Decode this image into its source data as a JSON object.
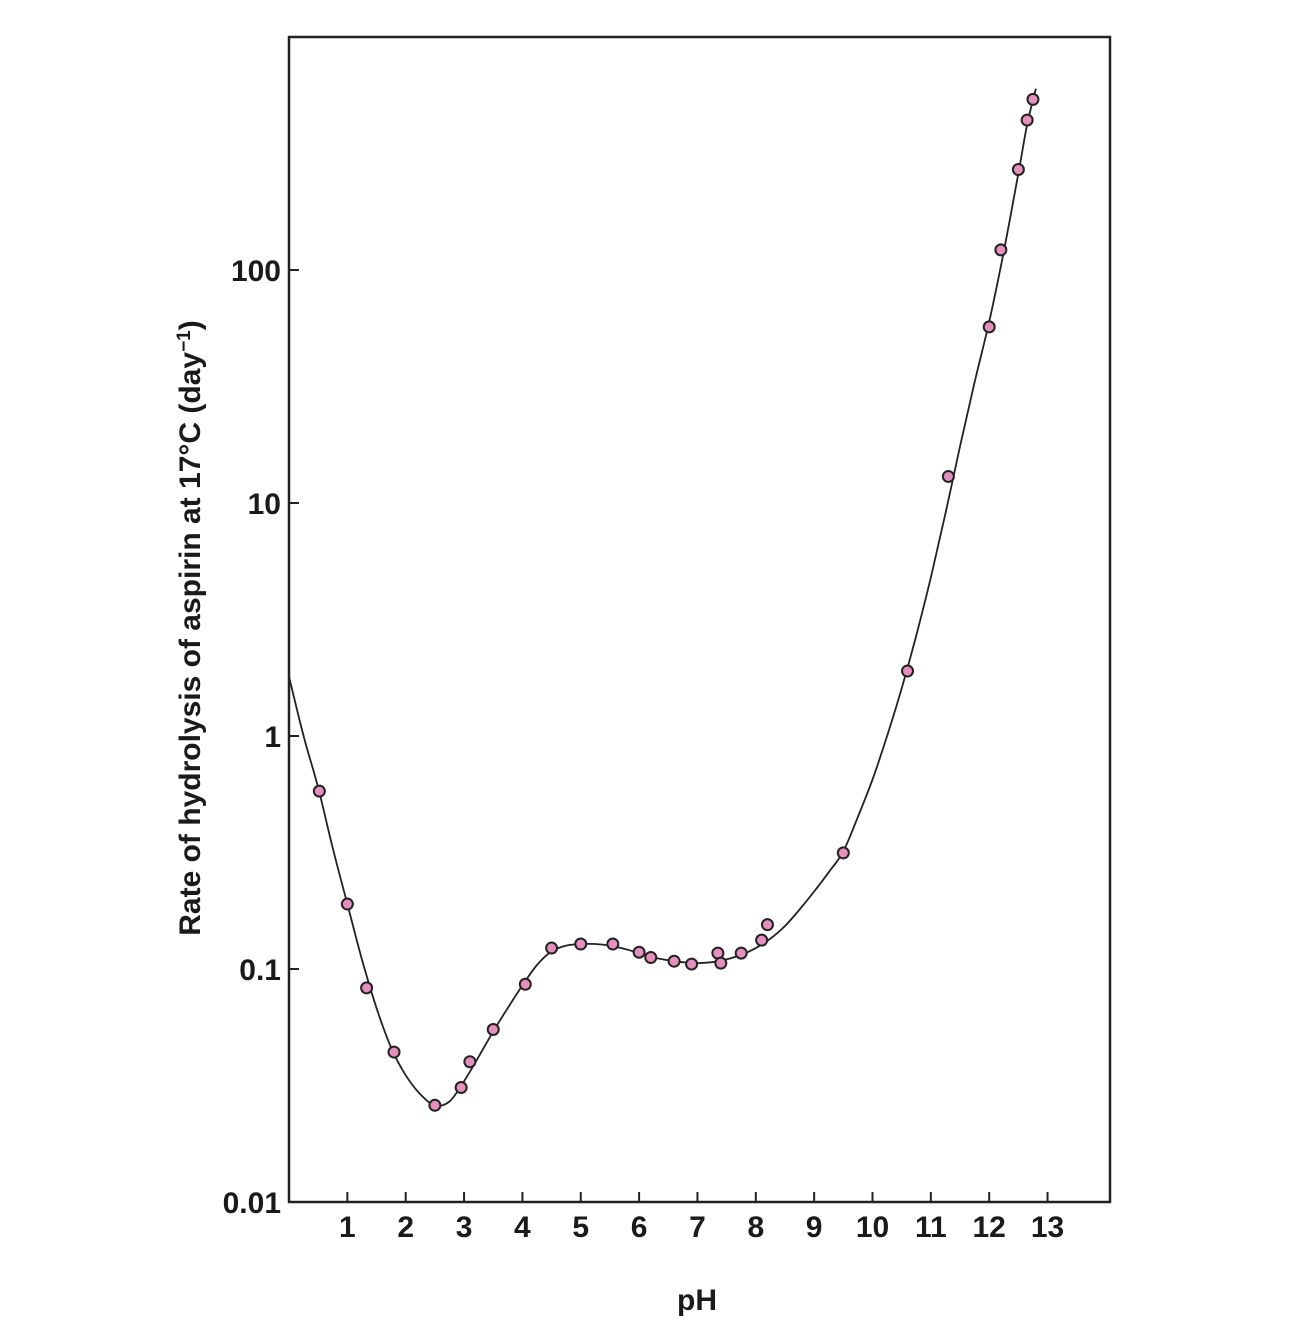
{
  "chart_data": {
    "type": "scatter",
    "title": "",
    "xlabel": "pH",
    "ylabel": "Rate of hydrolysis of aspirin at 17°C (day⁻¹)",
    "ylabel_main": "Rate of hydrolysis of aspirin at 17°C (day",
    "ylabel_sup": "−1",
    "ylabel_close": ")",
    "y_scale": "log",
    "xlim": [
      0,
      13.9
    ],
    "ylim": [
      0.01,
      1000
    ],
    "x_ticks": [
      1,
      2,
      3,
      4,
      5,
      6,
      7,
      8,
      9,
      10,
      11,
      12,
      13
    ],
    "x_tick_labels": [
      "1",
      "2",
      "3",
      "4",
      "5",
      "6",
      "7",
      "8",
      "9",
      "10",
      "11",
      "12",
      "13"
    ],
    "y_ticks": [
      0.01,
      0.1,
      1,
      10,
      100
    ],
    "y_tick_labels": [
      "0.01",
      "0.1",
      "1",
      "10",
      "100"
    ],
    "grid": false,
    "point_color": "#e48fbd",
    "series": [
      {
        "points": [
          [
            0.52,
            0.58
          ],
          [
            1.0,
            0.19
          ],
          [
            1.33,
            0.083
          ],
          [
            1.8,
            0.044
          ],
          [
            2.5,
            0.026
          ],
          [
            2.95,
            0.031
          ],
          [
            3.1,
            0.04
          ],
          [
            3.5,
            0.055
          ],
          [
            4.05,
            0.086
          ],
          [
            4.5,
            0.123
          ],
          [
            5.0,
            0.128
          ],
          [
            5.55,
            0.128
          ],
          [
            6.0,
            0.118
          ],
          [
            6.2,
            0.112
          ],
          [
            6.6,
            0.108
          ],
          [
            6.9,
            0.105
          ],
          [
            7.35,
            0.117
          ],
          [
            7.4,
            0.106
          ],
          [
            7.75,
            0.117
          ],
          [
            8.1,
            0.133
          ],
          [
            8.2,
            0.155
          ],
          [
            9.5,
            0.315
          ],
          [
            10.6,
            1.9
          ],
          [
            11.3,
            13.0
          ],
          [
            12.0,
            57
          ],
          [
            12.2,
            122
          ],
          [
            12.5,
            270
          ],
          [
            12.65,
            440
          ],
          [
            12.75,
            540
          ]
        ]
      }
    ],
    "fit_curve": [
      [
        0,
        1.8
      ],
      [
        0.25,
        1.0
      ],
      [
        0.5,
        0.6
      ],
      [
        0.75,
        0.33
      ],
      [
        1.0,
        0.19
      ],
      [
        1.25,
        0.11
      ],
      [
        1.5,
        0.068
      ],
      [
        1.75,
        0.046
      ],
      [
        2.0,
        0.035
      ],
      [
        2.25,
        0.029
      ],
      [
        2.5,
        0.026
      ],
      [
        2.75,
        0.027
      ],
      [
        3.0,
        0.033
      ],
      [
        3.25,
        0.042
      ],
      [
        3.5,
        0.054
      ],
      [
        3.75,
        0.068
      ],
      [
        4.0,
        0.085
      ],
      [
        4.25,
        0.104
      ],
      [
        4.5,
        0.119
      ],
      [
        4.75,
        0.126
      ],
      [
        5.0,
        0.128
      ],
      [
        5.25,
        0.128
      ],
      [
        5.5,
        0.126
      ],
      [
        5.75,
        0.122
      ],
      [
        6.0,
        0.117
      ],
      [
        6.25,
        0.112
      ],
      [
        6.5,
        0.109
      ],
      [
        6.75,
        0.107
      ],
      [
        7.0,
        0.106
      ],
      [
        7.25,
        0.107
      ],
      [
        7.5,
        0.11
      ],
      [
        7.75,
        0.115
      ],
      [
        8.0,
        0.123
      ],
      [
        8.25,
        0.135
      ],
      [
        8.5,
        0.153
      ],
      [
        8.75,
        0.18
      ],
      [
        9.0,
        0.215
      ],
      [
        9.25,
        0.26
      ],
      [
        9.5,
        0.32
      ],
      [
        9.75,
        0.45
      ],
      [
        10.0,
        0.65
      ],
      [
        10.25,
        1.0
      ],
      [
        10.5,
        1.6
      ],
      [
        10.75,
        2.7
      ],
      [
        11.0,
        4.8
      ],
      [
        11.25,
        9.0
      ],
      [
        11.5,
        17.5
      ],
      [
        11.75,
        33
      ],
      [
        12.0,
        60
      ],
      [
        12.25,
        120
      ],
      [
        12.5,
        260
      ],
      [
        12.65,
        420
      ],
      [
        12.8,
        600
      ]
    ]
  }
}
